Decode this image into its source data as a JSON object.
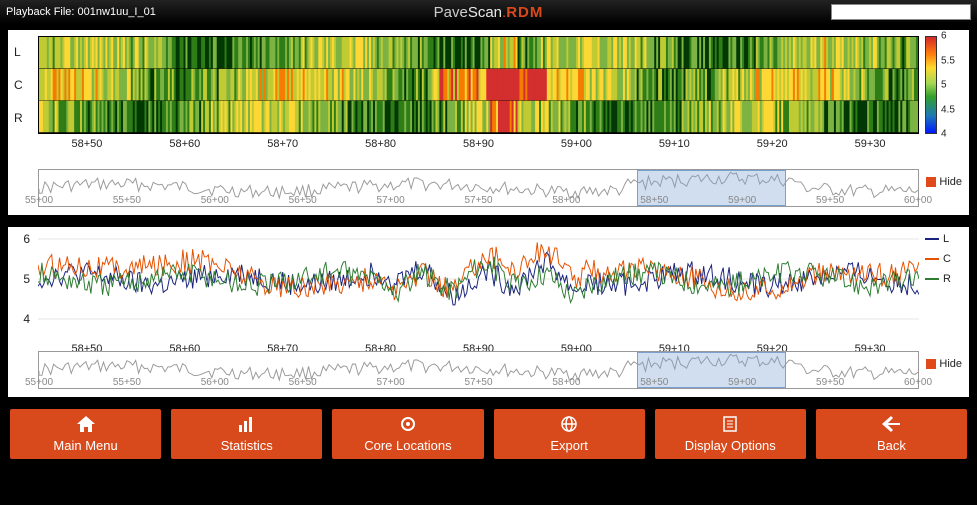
{
  "header": {
    "playback_label": "Playback File:",
    "playback_file": "001nw1uu_I_01",
    "brand_p1": "Pave",
    "brand_p2": "Scan",
    "brand_dot": ".",
    "brand_rdm": "RDM",
    "search_value": ""
  },
  "heatmap": {
    "channels": [
      "L",
      "C",
      "R"
    ],
    "x_ticks": [
      "58+50",
      "58+60",
      "58+70",
      "58+80",
      "58+90",
      "59+00",
      "59+10",
      "59+20",
      "59+30"
    ],
    "colorbar": {
      "min": 4,
      "max": 6,
      "ticks": [
        6,
        5.5,
        5,
        4.5,
        4
      ]
    },
    "colors": {
      "low": "#023803",
      "mid_low": "#2e7d17",
      "mid": "#7cb342",
      "mid_high": "#c0ca33",
      "high": "#fdd835",
      "hot": "#f57c00",
      "max": "#d32f2f"
    },
    "hide_label": "Hide"
  },
  "overview": {
    "ticks": [
      "55+00",
      "55+50",
      "56+00",
      "56+50",
      "57+00",
      "57+50",
      "58+00",
      "58+50",
      "59+00",
      "59+50",
      "60+00"
    ],
    "selection": {
      "start_pct": 68,
      "width_pct": 17
    },
    "line_color": "#999999"
  },
  "linechart": {
    "ylim": [
      3.5,
      6.2
    ],
    "y_ticks": [
      4,
      5,
      6
    ],
    "x_ticks": [
      "58+50",
      "58+60",
      "58+70",
      "58+80",
      "58+90",
      "59+00",
      "59+10",
      "59+20",
      "59+30"
    ],
    "series": [
      {
        "name": "L",
        "color": "#1a237e"
      },
      {
        "name": "C",
        "color": "#e65100"
      },
      {
        "name": "R",
        "color": "#2e7d32"
      }
    ],
    "hide_label": "Hide"
  },
  "footer": {
    "buttons": [
      {
        "icon": "home",
        "label": "Main Menu"
      },
      {
        "icon": "stats",
        "label": "Statistics"
      },
      {
        "icon": "core",
        "label": "Core Locations"
      },
      {
        "icon": "globe",
        "label": "Export"
      },
      {
        "icon": "doc",
        "label": "Display Options"
      },
      {
        "icon": "back",
        "label": "Back"
      }
    ],
    "bg_color": "#d84a1b"
  }
}
